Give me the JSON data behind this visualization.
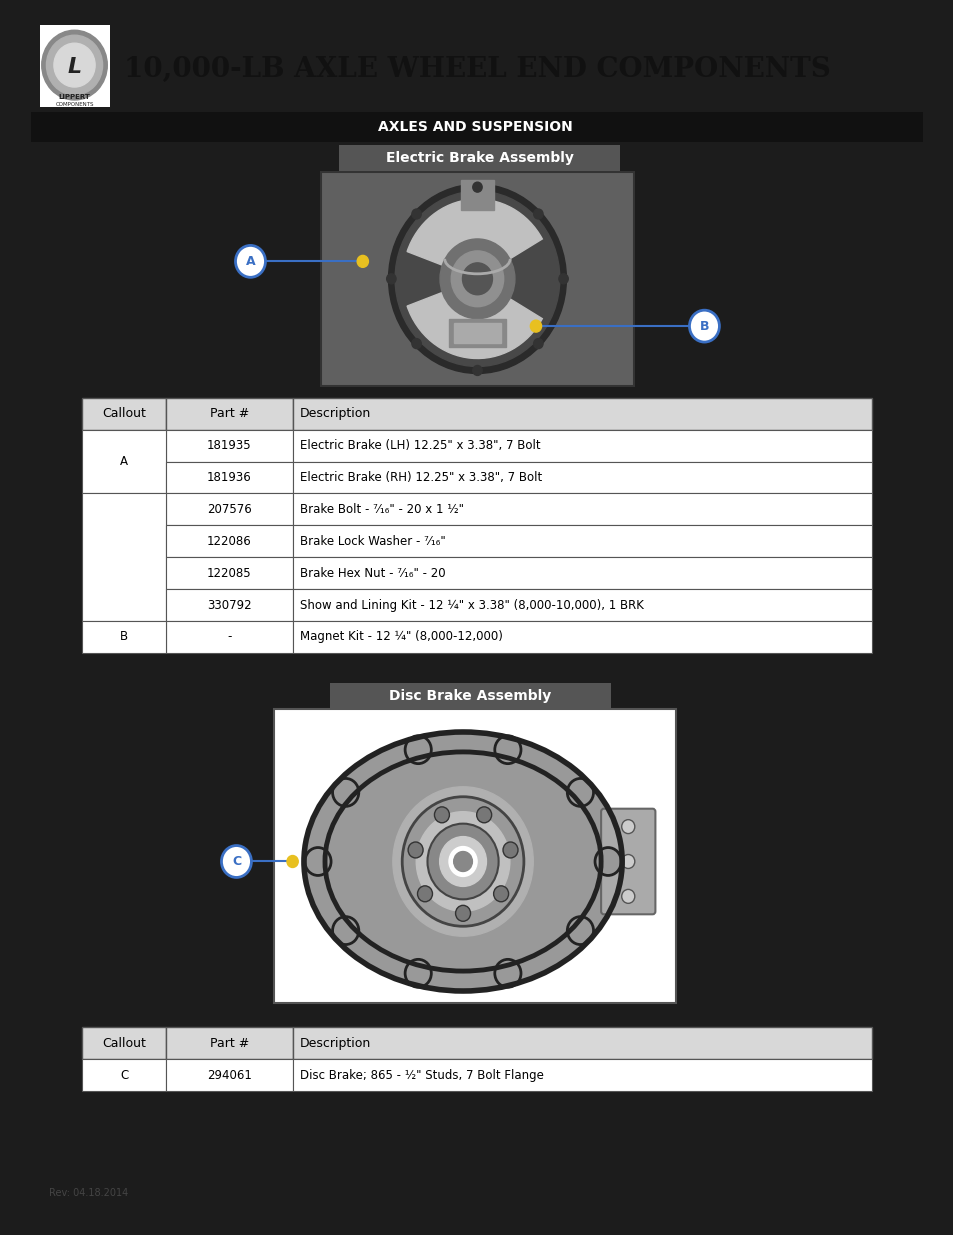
{
  "title": "10,000-LB AXLE WHEEL END COMPONENTS",
  "section_label": "AXLES AND SUSPENSION",
  "electric_brake_label": "Electric Brake Assembly",
  "disc_brake_label": "Disc Brake Assembly",
  "page_bg": "#1c1c1c",
  "content_bg": "#ffffff",
  "section_header_bg": "#111111",
  "section_header_color": "#ffffff",
  "brake_label_bg": "#555555",
  "brake_label_color": "#ffffff",
  "table1_headers": [
    "Callout",
    "Part #",
    "Description"
  ],
  "table1_rows": [
    [
      "A",
      "181935",
      "Electric Brake (LH) 12.25\" x 3.38\", 7 Bolt"
    ],
    [
      "A",
      "181936",
      "Electric Brake (RH) 12.25\" x 3.38\", 7 Bolt"
    ],
    [
      "",
      "207576",
      "Brake Bolt - ⁷⁄₁₆\" - 20 x 1 ½\""
    ],
    [
      "",
      "122086",
      "Brake Lock Washer - ⁷⁄₁₆\""
    ],
    [
      "",
      "122085",
      "Brake Hex Nut - ⁷⁄₁₆\" - 20"
    ],
    [
      "",
      "330792",
      "Show and Lining Kit - 12 ¼\" x 3.38\" (8,000-10,000), 1 BRK"
    ],
    [
      "B",
      "-",
      "Magnet Kit - 12 ¼\" (8,000-12,000)"
    ]
  ],
  "table2_headers": [
    "Callout",
    "Part #",
    "Description"
  ],
  "table2_rows": [
    [
      "C",
      "294061",
      "Disc Brake; 865 - ½\" Studs, 7 Bolt Flange"
    ]
  ],
  "callout_dot_color": "#e8c020",
  "callout_circle_edge": "#3a6fc4",
  "callout_circle_fill": "#ffffff",
  "callout_text_color": "#3a6fc4",
  "callout_line_color": "#3a6fc4",
  "footer_text": "Rev: 04.18.2014",
  "table_header_bg": "#d8d8d8",
  "table_border_color": "#555555",
  "table_row_bg": "#ffffff",
  "title_fontsize": 20,
  "section_fontsize": 10,
  "brake_label_fontsize": 10,
  "table_header_fontsize": 9,
  "table_data_fontsize": 8.5
}
